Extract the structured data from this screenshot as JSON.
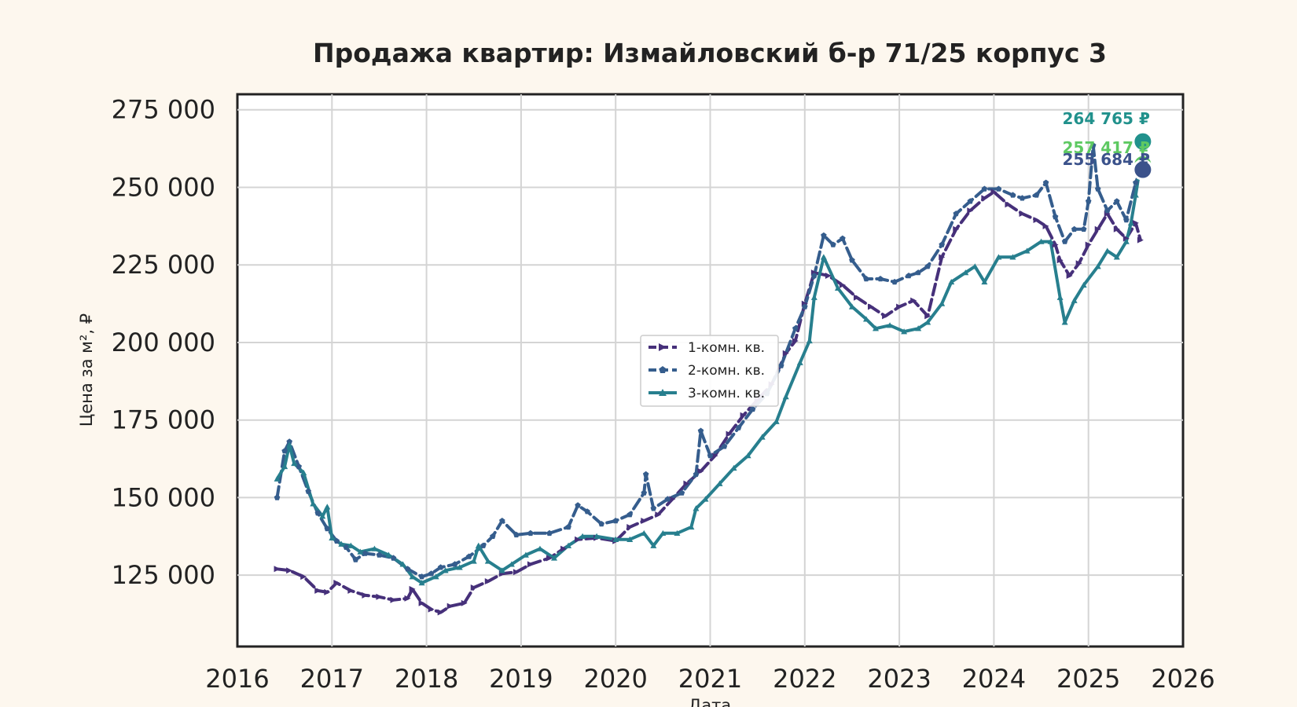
{
  "chart_data": {
    "type": "line",
    "title": "Продажа квартир: Измайловский б-р 71/25 корпус 3",
    "xlabel": "Дата",
    "ylabel": "Цена за м², ₽",
    "xlim": [
      2016,
      2026
    ],
    "ylim": [
      102000,
      280000
    ],
    "x_ticks": [
      "2016",
      "2017",
      "2018",
      "2019",
      "2020",
      "2021",
      "2022",
      "2023",
      "2024",
      "2025",
      "2026"
    ],
    "y_ticks": [
      {
        "value": 125000,
        "label": "125 000"
      },
      {
        "value": 150000,
        "label": "150 000"
      },
      {
        "value": 175000,
        "label": "175 000"
      },
      {
        "value": 200000,
        "label": "200 000"
      },
      {
        "value": 225000,
        "label": "225 000"
      },
      {
        "value": 250000,
        "label": "250 000"
      },
      {
        "value": 275000,
        "label": "275 000"
      }
    ],
    "grid": true,
    "legend_position": "center",
    "series": [
      {
        "name": "1-комн. кв.",
        "color": "#46307a",
        "dash": "dashed",
        "marker": "arrow",
        "x": [
          2016.42,
          2016.55,
          2016.7,
          2016.85,
          2016.95,
          2017.05,
          2017.2,
          2017.35,
          2017.5,
          2017.65,
          2017.8,
          2017.85,
          2017.95,
          2018.05,
          2018.15,
          2018.25,
          2018.4,
          2018.5,
          2018.65,
          2018.8,
          2018.95,
          2019.1,
          2019.3,
          2019.45,
          2019.6,
          2019.8,
          2020.0,
          2020.15,
          2020.3,
          2020.45,
          2020.6,
          2020.75,
          2020.9,
          2021.05,
          2021.2,
          2021.35,
          2021.5,
          2021.65,
          2021.8,
          2021.9,
          2022.0,
          2022.1,
          2022.25,
          2022.4,
          2022.55,
          2022.7,
          2022.85,
          2023.0,
          2023.15,
          2023.3,
          2023.45,
          2023.6,
          2023.75,
          2023.9,
          2024.0,
          2024.15,
          2024.3,
          2024.45,
          2024.55,
          2024.65,
          2024.7,
          2024.8,
          2024.9,
          2025.0,
          2025.1,
          2025.2,
          2025.3,
          2025.4,
          2025.5,
          2025.55
        ],
        "y": [
          127000,
          126500,
          124500,
          120000,
          119500,
          122500,
          120000,
          118500,
          118000,
          117000,
          117500,
          120500,
          116000,
          114000,
          113000,
          115000,
          116000,
          121000,
          123000,
          125500,
          126000,
          128500,
          130500,
          133500,
          136500,
          137000,
          136000,
          140500,
          142500,
          144500,
          149500,
          154500,
          158500,
          163500,
          170500,
          176500,
          181500,
          186500,
          196500,
          200500,
          212500,
          222500,
          221500,
          218500,
          214500,
          211500,
          208500,
          211500,
          213500,
          208500,
          227500,
          236500,
          242500,
          246500,
          248500,
          244500,
          241500,
          239500,
          237500,
          231500,
          226500,
          221500,
          225500,
          231500,
          236500,
          241500,
          236500,
          233500,
          238500,
          233000
        ]
      },
      {
        "name": "2-комн. кв.",
        "color": "#355d8d",
        "dash": "dashed",
        "marker": "pentagon",
        "x": [
          2016.42,
          2016.5,
          2016.55,
          2016.65,
          2016.75,
          2016.85,
          2016.95,
          2017.05,
          2017.15,
          2017.25,
          2017.35,
          2017.5,
          2017.65,
          2017.8,
          2017.95,
          2018.05,
          2018.15,
          2018.3,
          2018.45,
          2018.6,
          2018.7,
          2018.8,
          2018.95,
          2019.1,
          2019.3,
          2019.5,
          2019.6,
          2019.7,
          2019.85,
          2020.0,
          2020.15,
          2020.3,
          2020.32,
          2020.4,
          2020.55,
          2020.7,
          2020.85,
          2020.9,
          2021.0,
          2021.15,
          2021.3,
          2021.45,
          2021.6,
          2021.75,
          2021.9,
          2022.0,
          2022.1,
          2022.2,
          2022.3,
          2022.4,
          2022.5,
          2022.65,
          2022.8,
          2022.95,
          2023.1,
          2023.2,
          2023.3,
          2023.45,
          2023.6,
          2023.75,
          2023.9,
          2024.05,
          2024.2,
          2024.3,
          2024.45,
          2024.55,
          2024.65,
          2024.75,
          2024.85,
          2024.95,
          2025.0,
          2025.05,
          2025.1,
          2025.2,
          2025.3,
          2025.4,
          2025.5,
          2025.55
        ],
        "y": [
          150000,
          165000,
          168000,
          160000,
          152000,
          145000,
          140000,
          136000,
          134000,
          130000,
          132000,
          131500,
          130500,
          127000,
          124500,
          125500,
          127500,
          128500,
          131000,
          134500,
          137500,
          142500,
          138000,
          138500,
          138500,
          140500,
          147500,
          145500,
          141500,
          142500,
          144500,
          151500,
          157500,
          146500,
          149500,
          151500,
          157500,
          171500,
          163500,
          166500,
          172500,
          178500,
          183500,
          192500,
          204500,
          211500,
          221500,
          234500,
          231500,
          233500,
          226500,
          220500,
          220500,
          219500,
          221500,
          222500,
          224500,
          231500,
          241500,
          245500,
          249500,
          249500,
          247500,
          246500,
          247500,
          251500,
          240500,
          232500,
          236500,
          236500,
          245500,
          263500,
          249500,
          242500,
          245500,
          239500,
          251500,
          255684
        ]
      },
      {
        "name": "3-комн. кв.",
        "color": "#277f8e",
        "dash": "solid",
        "marker": "triangle",
        "x": [
          2016.42,
          2016.5,
          2016.55,
          2016.6,
          2016.7,
          2016.8,
          2016.9,
          2016.95,
          2017.0,
          2017.1,
          2017.2,
          2017.3,
          2017.45,
          2017.6,
          2017.75,
          2017.85,
          2017.95,
          2018.1,
          2018.2,
          2018.35,
          2018.5,
          2018.55,
          2018.65,
          2018.8,
          2018.9,
          2019.05,
          2019.2,
          2019.35,
          2019.5,
          2019.65,
          2019.8,
          2020.0,
          2020.15,
          2020.3,
          2020.4,
          2020.5,
          2020.65,
          2020.8,
          2020.85,
          2020.95,
          2021.1,
          2021.25,
          2021.4,
          2021.55,
          2021.7,
          2021.8,
          2021.95,
          2022.05,
          2022.1,
          2022.2,
          2022.35,
          2022.5,
          2022.65,
          2022.75,
          2022.9,
          2023.05,
          2023.2,
          2023.3,
          2023.45,
          2023.55,
          2023.7,
          2023.8,
          2023.9,
          2024.05,
          2024.2,
          2024.35,
          2024.5,
          2024.6,
          2024.7,
          2024.75,
          2024.85,
          2024.95,
          2025.1,
          2025.2,
          2025.3,
          2025.4,
          2025.45,
          2025.5,
          2025.55
        ],
        "y": [
          156000,
          160000,
          167000,
          161000,
          158000,
          148000,
          144000,
          147000,
          137000,
          135000,
          134500,
          132500,
          133500,
          131500,
          128500,
          124500,
          122500,
          124500,
          126500,
          127500,
          129500,
          134500,
          129500,
          126500,
          128500,
          131500,
          133500,
          130500,
          134500,
          137500,
          137500,
          136500,
          136500,
          138500,
          134500,
          138500,
          138500,
          140500,
          146500,
          149500,
          154500,
          159500,
          163500,
          169500,
          174500,
          182500,
          193500,
          200500,
          214500,
          227500,
          217500,
          211500,
          207500,
          204500,
          205500,
          203500,
          204500,
          206500,
          212500,
          219500,
          222500,
          224500,
          219500,
          227500,
          227500,
          229500,
          232500,
          232500,
          214500,
          206500,
          213500,
          218500,
          224500,
          229500,
          227500,
          232500,
          238500,
          247500,
          257417
        ]
      }
    ],
    "end_points": [
      {
        "label": "264 765 ₽",
        "x": 2025.55,
        "y": 264765,
        "color": "#21918c"
      },
      {
        "label": "257 417 ₽",
        "x": 2025.55,
        "y": 257417,
        "color": "#5ec962"
      },
      {
        "label": "255 684 ₽",
        "x": 2025.55,
        "y": 255684,
        "color": "#3b528b"
      }
    ]
  }
}
